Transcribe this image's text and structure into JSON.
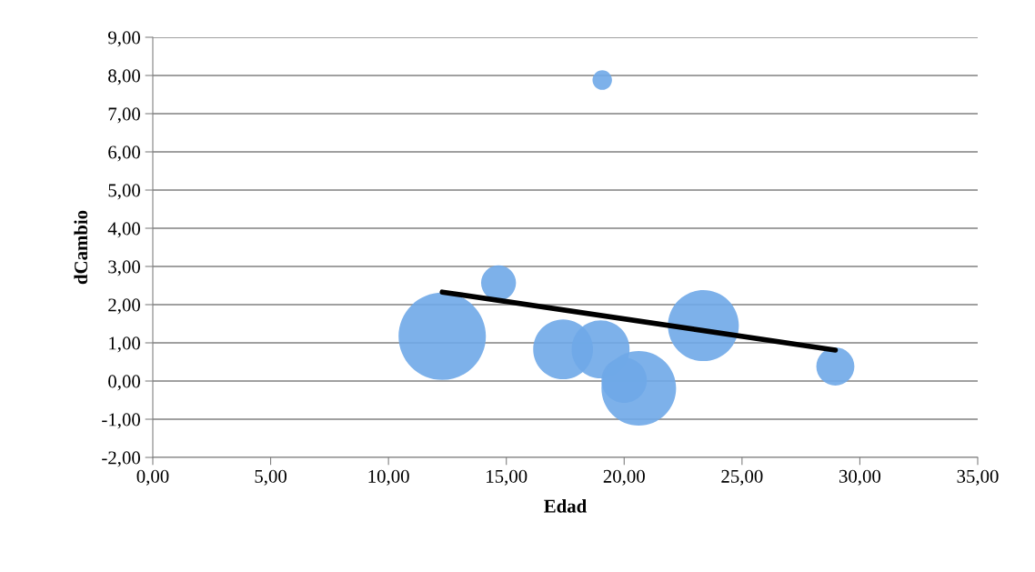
{
  "chart_data": {
    "type": "bubble",
    "xlabel": "Edad",
    "ylabel": "dCambio",
    "xlim": [
      0,
      35
    ],
    "ylim": [
      -2,
      9
    ],
    "xticks": [
      {
        "value": 0,
        "label": "0,00"
      },
      {
        "value": 5,
        "label": "5,00"
      },
      {
        "value": 10,
        "label": "10,00"
      },
      {
        "value": 15,
        "label": "15,00"
      },
      {
        "value": 20,
        "label": "20,00"
      },
      {
        "value": 25,
        "label": "25,00"
      },
      {
        "value": 30,
        "label": "30,00"
      },
      {
        "value": 35,
        "label": "35,00"
      }
    ],
    "yticks": [
      {
        "value": -2,
        "label": "-2,00"
      },
      {
        "value": -1,
        "label": "-1,00"
      },
      {
        "value": 0,
        "label": "0,00"
      },
      {
        "value": 1,
        "label": "1,00"
      },
      {
        "value": 2,
        "label": "2,00"
      },
      {
        "value": 3,
        "label": "3,00"
      },
      {
        "value": 4,
        "label": "4,00"
      },
      {
        "value": 5,
        "label": "5,00"
      },
      {
        "value": 6,
        "label": "6,00"
      },
      {
        "value": 7,
        "label": "7,00"
      },
      {
        "value": 8,
        "label": "8,00"
      },
      {
        "value": 9,
        "label": "9,00"
      }
    ],
    "grid": "y",
    "series": [
      {
        "color": "#6fa8e8",
        "x": [
          12.28,
          14.67,
          17.41,
          19.07,
          19.0,
          20.0,
          20.62,
          23.36,
          28.96
        ],
        "values": [
          1.17,
          2.57,
          0.83,
          7.88,
          0.83,
          0.02,
          -0.19,
          1.45,
          0.38
        ],
        "sizes": [
          1,
          0.16,
          0.47,
          0.05,
          0.44,
          0.27,
          0.73,
          0.66,
          0.19
        ]
      },
      {
        "type": "line",
        "color": "#000000",
        "x": [
          12.28,
          28.96
        ],
        "values": [
          2.33,
          0.81
        ]
      }
    ]
  }
}
